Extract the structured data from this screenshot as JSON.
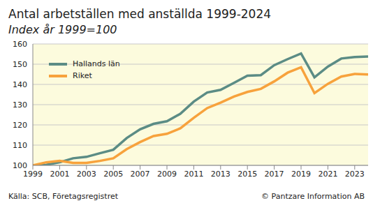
{
  "chart_data": {
    "type": "line",
    "title": "Antal arbetställen med anställda 1999-2024",
    "subtitle": "Index år 1999=100",
    "source": "Källa: SCB, Företagsregistret",
    "credit": "© Pantzare Information AB",
    "x": [
      1999,
      2000,
      2001,
      2002,
      2003,
      2004,
      2005,
      2006,
      2007,
      2008,
      2009,
      2010,
      2011,
      2012,
      2013,
      2014,
      2015,
      2016,
      2017,
      2018,
      2019,
      2020,
      2021,
      2022,
      2023,
      2024
    ],
    "series": [
      {
        "name": "Hallands län",
        "color": "#5b8c85",
        "values": [
          100,
          100.3,
          101.5,
          103.5,
          104.2,
          106,
          107.7,
          113.5,
          117.8,
          120.5,
          121.8,
          125.5,
          131.5,
          136,
          137.3,
          140.8,
          144.3,
          144.6,
          149.5,
          152.5,
          155.3,
          143.5,
          148.8,
          152.8,
          153.5,
          153.8
        ]
      },
      {
        "name": "Riket",
        "color": "#f7a23c",
        "values": [
          100,
          101.5,
          102.2,
          101.2,
          101.2,
          102.2,
          103.5,
          108,
          111.5,
          114.5,
          115.6,
          118.3,
          123.5,
          128.3,
          131,
          134,
          136.3,
          137.8,
          141.5,
          145.8,
          148.5,
          135.7,
          140.3,
          143.9,
          145.2,
          144.9
        ]
      }
    ],
    "xlim": [
      1999,
      2024
    ],
    "xticks": [
      1999,
      2001,
      2003,
      2005,
      2007,
      2009,
      2011,
      2013,
      2015,
      2017,
      2019,
      2021,
      2023
    ],
    "ylim": [
      100,
      160
    ],
    "yticks": [
      100,
      110,
      120,
      130,
      140,
      150,
      160
    ],
    "grid": true,
    "legend": "upper left"
  }
}
